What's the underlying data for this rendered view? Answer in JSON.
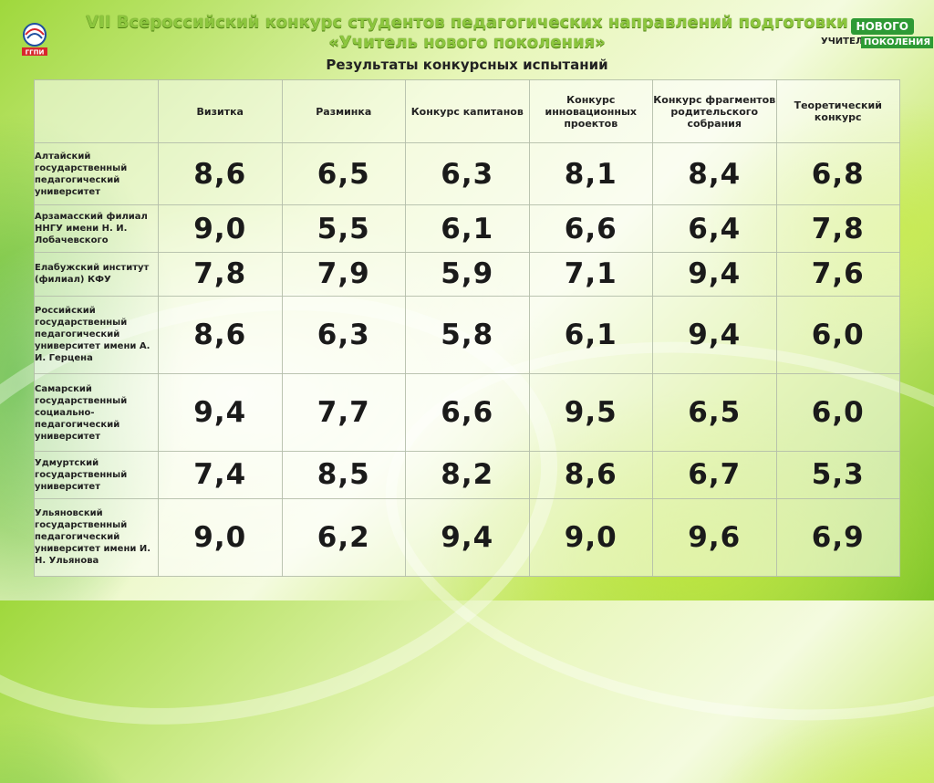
{
  "header": {
    "title_line1": "VII Всероссийский конкурс студентов педагогических направлений подготовки",
    "title_line2": "«Учитель нового поколения»",
    "subtitle": "Результаты конкурсных испытаний",
    "logo_left_text": "ГГПИ",
    "logo_right_line1": "НОВОГО",
    "logo_right_line2": "УЧИТЕЛЬ",
    "logo_right_line3": "ПОКОЛЕНИЯ"
  },
  "table": {
    "columns": [
      "Визитка",
      "Разминка",
      "Конкурс капитанов",
      "Конкурс инновационных проектов",
      "Конкурс фрагментов родительского собрания",
      "Теоретический конкурс"
    ],
    "rows": [
      {
        "university": "Алтайский государственный педагогический университет",
        "scores": [
          "8,6",
          "6,5",
          "6,3",
          "8,1",
          "8,4",
          "6,8"
        ]
      },
      {
        "university": "Арзамасский филиал ННГУ имени Н. И. Лобачевского",
        "scores": [
          "9,0",
          "5,5",
          "6,1",
          "6,6",
          "6,4",
          "7,8"
        ]
      },
      {
        "university": "Елабужский институт (филиал) КФУ",
        "scores": [
          "7,8",
          "7,9",
          "5,9",
          "7,1",
          "9,4",
          "7,6"
        ]
      },
      {
        "university": "Российский государственный педагогический университет имени А. И. Герцена",
        "scores": [
          "8,6",
          "6,3",
          "5,8",
          "6,1",
          "9,4",
          "6,0"
        ]
      },
      {
        "university": "Самарский государственный социально-педагогический университет",
        "scores": [
          "9,4",
          "7,7",
          "6,6",
          "9,5",
          "6,5",
          "6,0"
        ]
      },
      {
        "university": "Удмуртский государственный университет",
        "scores": [
          "7,4",
          "8,5",
          "8,2",
          "8,6",
          "6,7",
          "5,3"
        ]
      },
      {
        "university": "Ульяновский государственный педагогический университет имени И. Н. Ульянова",
        "scores": [
          "9,0",
          "6,2",
          "9,4",
          "9,0",
          "9,6",
          "6,9"
        ]
      }
    ]
  }
}
